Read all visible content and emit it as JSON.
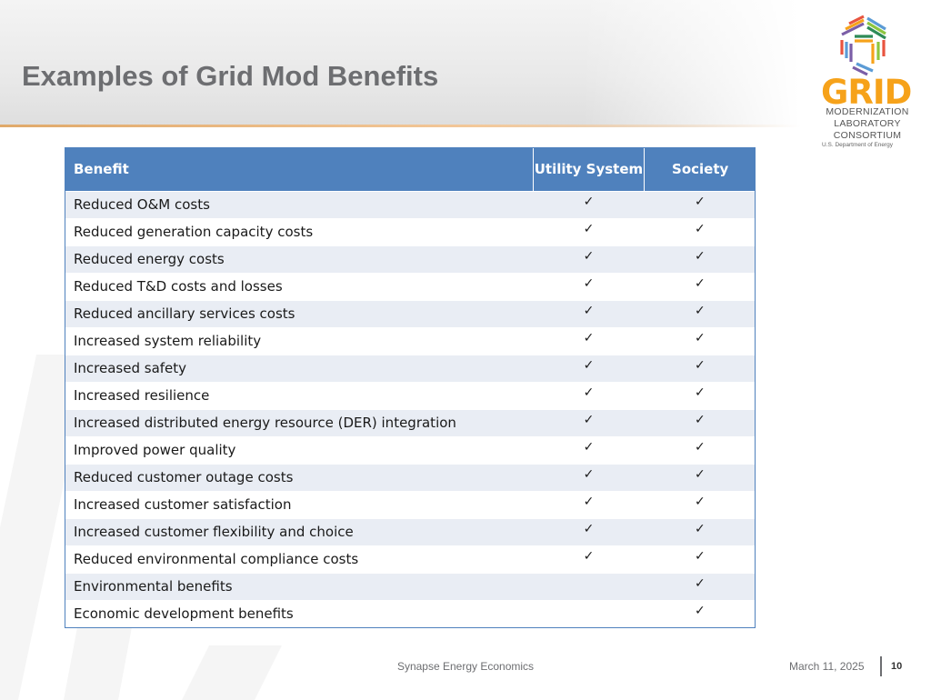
{
  "slide": {
    "title": "Examples of Grid Mod Benefits"
  },
  "logo": {
    "wordmark": "GRID",
    "line1": "MODERNIZATION",
    "line2": "LABORATORY",
    "line3": "CONSORTIUM",
    "subline": "U.S. Department of Energy",
    "colors": [
      "#f6a21a",
      "#8dc63f",
      "#5b9bd5",
      "#e8543f",
      "#7b5ea7",
      "#2e8b57"
    ]
  },
  "table": {
    "headers": {
      "benefit": "Benefit",
      "utility": "Utility System",
      "society": "Society"
    },
    "header_color": "#4f81bd",
    "check_glyph": "✓",
    "rows": [
      {
        "benefit": "Reduced O&M costs",
        "utility": "✓",
        "society": "✓"
      },
      {
        "benefit": "Reduced generation capacity costs",
        "utility": "✓",
        "society": "✓"
      },
      {
        "benefit": "Reduced energy costs",
        "utility": "✓",
        "society": "✓"
      },
      {
        "benefit": "Reduced T&D costs and losses",
        "utility": "✓",
        "society": "✓"
      },
      {
        "benefit": "Reduced ancillary services costs",
        "utility": "✓",
        "society": "✓"
      },
      {
        "benefit": "Increased system reliability",
        "utility": "✓",
        "society": "✓"
      },
      {
        "benefit": "Increased safety",
        "utility": "✓",
        "society": "✓"
      },
      {
        "benefit": "Increased resilience",
        "utility": "✓",
        "society": "✓"
      },
      {
        "benefit": "Increased distributed energy resource (DER) integration",
        "utility": "✓",
        "society": "✓"
      },
      {
        "benefit": "Improved power quality",
        "utility": "✓",
        "society": "✓"
      },
      {
        "benefit": "Reduced customer outage costs",
        "utility": "✓",
        "society": "✓"
      },
      {
        "benefit": "Increased customer satisfaction",
        "utility": "✓",
        "society": "✓"
      },
      {
        "benefit": "Increased customer flexibility and choice",
        "utility": "✓",
        "society": "✓"
      },
      {
        "benefit": "Reduced environmental compliance costs",
        "utility": "✓",
        "society": "✓"
      },
      {
        "benefit": "Environmental benefits",
        "utility": "",
        "society": "✓"
      },
      {
        "benefit": "Economic development benefits",
        "utility": "",
        "society": "✓"
      }
    ]
  },
  "footer": {
    "organization": "Synapse Energy Economics",
    "date": "March 11, 2025",
    "page_number": "10"
  }
}
